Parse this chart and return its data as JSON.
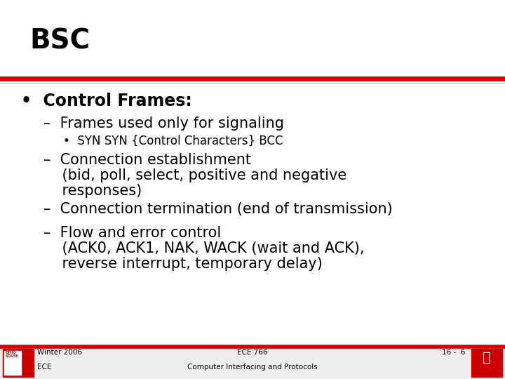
{
  "title": "BSC",
  "title_fontsize": 28,
  "divider_color": "#cc0000",
  "bg_color": "#ffffff",
  "text_color": "#000000",
  "bullet1": "•  Control Frames:",
  "bullet1_size": 17,
  "sub1": "–  Frames used only for signaling",
  "sub1_size": 15,
  "subsub1": "•  SYN SYN {Control Characters} BCC",
  "subsub1_size": 12,
  "sub2a": "–  Connection establishment",
  "sub2b": "    (bid, poll, select, positive and negative",
  "sub2c": "    responses)",
  "sub2_size": 15,
  "sub3": "–  Connection termination (end of transmission)",
  "sub3_size": 15,
  "sub4a": "–  Flow and error control",
  "sub4b": "    (ACK0, ACK1, NAK, WACK (wait and ACK),",
  "sub4c": "    reverse interrupt, temporary delay)",
  "sub4_size": 15,
  "footer_left1": "Winter 2006",
  "footer_left2": "ECE",
  "footer_center1": "ECE 766",
  "footer_center2": "Computer Interfacing and Protocols",
  "footer_right": "16 -  6",
  "footer_size": 7.5,
  "footer_bar_color": "#cc0000",
  "footer_bg_color": "#eeeeee"
}
